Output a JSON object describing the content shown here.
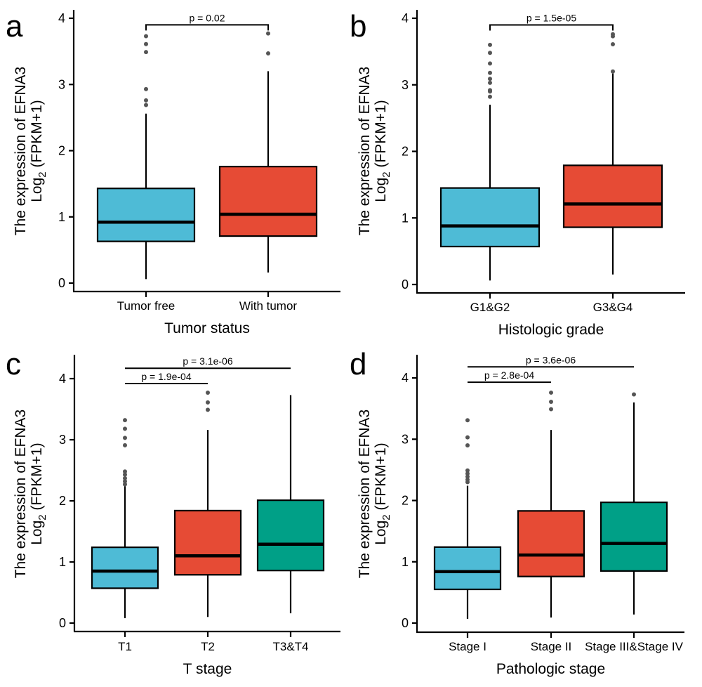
{
  "figure": {
    "panel_letters": [
      "a",
      "b",
      "c",
      "d"
    ]
  },
  "colors": {
    "cyan": "#4EBBD6",
    "red": "#E64B35",
    "teal": "#00A087",
    "outlier": "#555555"
  },
  "chart_data": [
    {
      "type": "box",
      "panel": "a",
      "title": "",
      "xlabel": "Tumor status",
      "ylabel_line1": "The expression of EFNA3",
      "ylabel_line2_prefix": "Log",
      "ylabel_line2_sub": "2",
      "ylabel_line2_suffix": " (FPKM+1)",
      "ylim": [
        -0.13,
        4.05
      ],
      "yticks": [
        0,
        1,
        2,
        3,
        4
      ],
      "categories": [
        "Tumor free",
        "With tumor"
      ],
      "boxes": [
        {
          "name": "Tumor free",
          "color": "cyan",
          "whisker_low": 0.06,
          "q1": 0.63,
          "median": 0.92,
          "q3": 1.43,
          "whisker_high": 2.56,
          "outliers": [
            3.73,
            3.61,
            3.49,
            2.93,
            2.76,
            2.69
          ]
        },
        {
          "name": "With tumor",
          "color": "red",
          "whisker_low": 0.16,
          "q1": 0.71,
          "median": 1.04,
          "q3": 1.76,
          "whisker_high": 3.2,
          "outliers": [
            3.77,
            3.47
          ]
        }
      ],
      "comparisons": [
        {
          "from": 0,
          "to": 1,
          "label": "p = 0.02",
          "y": 3.9,
          "style": "bracket"
        }
      ]
    },
    {
      "type": "box",
      "panel": "b",
      "title": "",
      "xlabel": "Histologic grade",
      "ylabel_line1": "The expression of EFNA3",
      "ylabel_line2_prefix": "Log",
      "ylabel_line2_sub": "2",
      "ylabel_line2_suffix": " (FPKM+1)",
      "ylim": [
        -0.13,
        4.05
      ],
      "yticks": [
        0,
        1,
        2,
        3,
        4
      ],
      "categories": [
        "G1&G2",
        "G3&G4"
      ],
      "boxes": [
        {
          "name": "G1&G2",
          "color": "cyan",
          "whisker_low": 0.06,
          "q1": 0.57,
          "median": 0.88,
          "q3": 1.45,
          "whisker_high": 2.7,
          "outliers": [
            3.6,
            3.48,
            3.32,
            3.18,
            3.09,
            3.03,
            2.92,
            2.9,
            2.82
          ]
        },
        {
          "name": "G3&G4",
          "color": "red",
          "whisker_low": 0.15,
          "q1": 0.86,
          "median": 1.21,
          "q3": 1.79,
          "whisker_high": 3.17,
          "outliers": [
            3.76,
            3.73,
            3.61,
            3.2
          ]
        }
      ],
      "comparisons": [
        {
          "from": 0,
          "to": 1,
          "label": "p = 1.5e-05",
          "y": 3.9,
          "style": "bracket"
        }
      ]
    },
    {
      "type": "box",
      "panel": "c",
      "title": "",
      "xlabel": "T stage",
      "ylabel_line1": "The expression of EFNA3",
      "ylabel_line2_prefix": "Log",
      "ylabel_line2_sub": "2",
      "ylabel_line2_suffix": " (FPKM+1)",
      "ylim": [
        -0.14,
        4.38
      ],
      "yticks": [
        0,
        1,
        2,
        3,
        4
      ],
      "categories": [
        "T1",
        "T2",
        "T3&T4"
      ],
      "boxes": [
        {
          "name": "T1",
          "color": "cyan",
          "whisker_low": 0.08,
          "q1": 0.57,
          "median": 0.85,
          "q3": 1.24,
          "whisker_high": 2.24,
          "outliers": [
            3.32,
            3.18,
            3.03,
            2.91,
            2.48,
            2.43,
            2.37,
            2.32,
            2.27
          ]
        },
        {
          "name": "T2",
          "color": "red",
          "whisker_low": 0.1,
          "q1": 0.79,
          "median": 1.1,
          "q3": 1.84,
          "whisker_high": 3.16,
          "outliers": [
            3.77,
            3.61,
            3.49
          ]
        },
        {
          "name": "T3&T4",
          "color": "teal",
          "whisker_low": 0.16,
          "q1": 0.86,
          "median": 1.29,
          "q3": 2.01,
          "whisker_high": 3.73,
          "outliers": []
        }
      ],
      "comparisons": [
        {
          "from": 0,
          "to": 2,
          "label": "p = 3.1e-06",
          "y": 4.17,
          "style": "line"
        },
        {
          "from": 0,
          "to": 1,
          "label": "p = 1.9e-04",
          "y": 3.92,
          "style": "line"
        }
      ]
    },
    {
      "type": "box",
      "panel": "d",
      "title": "",
      "xlabel": "Pathologic stage",
      "ylabel_line1": "The expression of EFNA3",
      "ylabel_line2_prefix": "Log",
      "ylabel_line2_sub": "2",
      "ylabel_line2_suffix": " (FPKM+1)",
      "ylim": [
        -0.14,
        4.38
      ],
      "yticks": [
        0,
        1,
        2,
        3,
        4
      ],
      "categories": [
        "Stage I",
        "Stage II",
        "Stage III&Stage IV"
      ],
      "boxes": [
        {
          "name": "Stage I",
          "color": "cyan",
          "whisker_low": 0.07,
          "q1": 0.55,
          "median": 0.84,
          "q3": 1.24,
          "whisker_high": 2.24,
          "outliers": [
            3.31,
            3.03,
            2.9,
            2.49,
            2.44,
            2.39,
            2.34,
            2.3
          ]
        },
        {
          "name": "Stage II",
          "color": "red",
          "whisker_low": 0.09,
          "q1": 0.76,
          "median": 1.11,
          "q3": 1.83,
          "whisker_high": 3.15,
          "outliers": [
            3.76,
            3.61,
            3.49
          ]
        },
        {
          "name": "Stage III&Stage IV",
          "color": "teal",
          "whisker_low": 0.14,
          "q1": 0.85,
          "median": 1.3,
          "q3": 1.97,
          "whisker_high": 3.6,
          "outliers": [
            3.73
          ]
        }
      ],
      "comparisons": [
        {
          "from": 0,
          "to": 2,
          "label": "p = 3.6e-06",
          "y": 4.18,
          "style": "line"
        },
        {
          "from": 0,
          "to": 1,
          "label": "p = 2.8e-04",
          "y": 3.93,
          "style": "line"
        }
      ]
    }
  ]
}
